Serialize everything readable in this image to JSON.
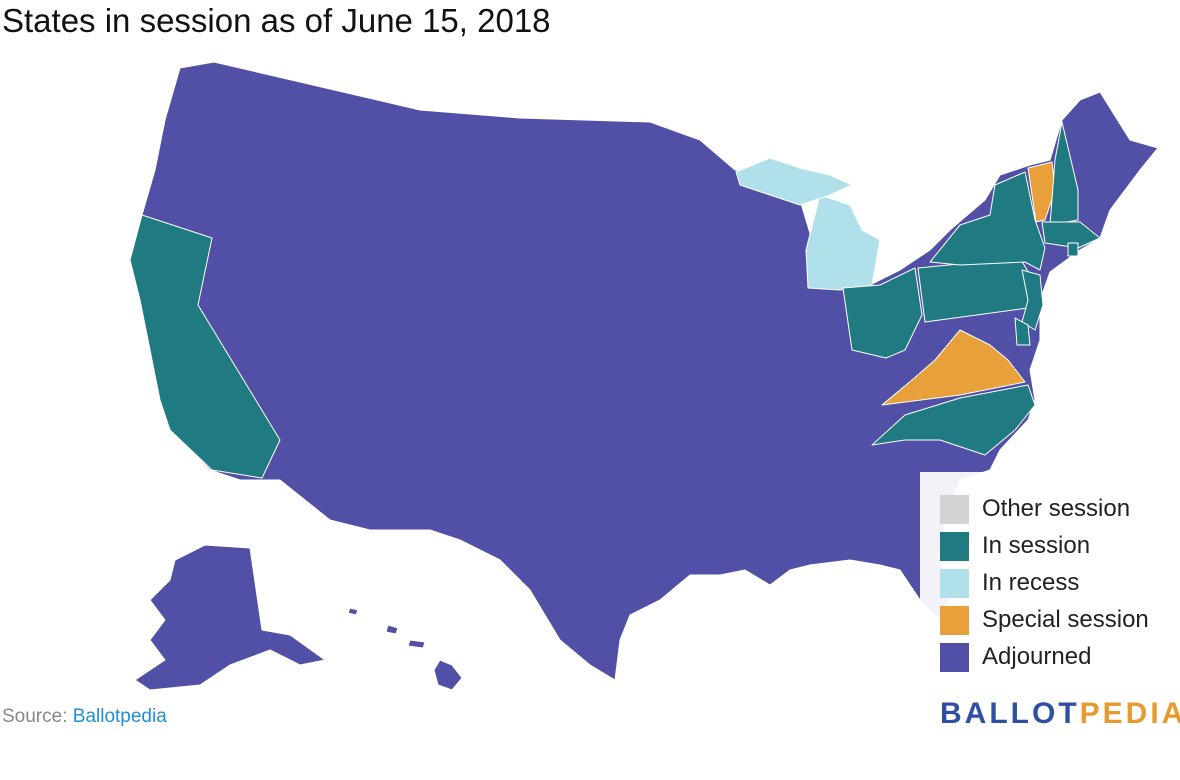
{
  "title": "States in session as of June 15, 2018",
  "colors": {
    "other": "#d3d3d3",
    "in_session": "#1f7a82",
    "in_recess": "#b0e1eb",
    "special": "#e8a03a",
    "adjourned": "#5150a6"
  },
  "legend": [
    {
      "label": "Other session",
      "key": "other"
    },
    {
      "label": "In session",
      "key": "in_session"
    },
    {
      "label": "In recess",
      "key": "in_recess"
    },
    {
      "label": "Special session",
      "key": "special"
    },
    {
      "label": "Adjourned",
      "key": "adjourned"
    }
  ],
  "states": [
    {
      "name": "California",
      "status": "in_session"
    },
    {
      "name": "Ohio",
      "status": "in_session"
    },
    {
      "name": "Pennsylvania",
      "status": "in_session"
    },
    {
      "name": "New York",
      "status": "in_session"
    },
    {
      "name": "New Jersey",
      "status": "in_session"
    },
    {
      "name": "Delaware",
      "status": "in_session"
    },
    {
      "name": "North Carolina",
      "status": "in_session"
    },
    {
      "name": "Massachusetts",
      "status": "in_session"
    },
    {
      "name": "New Hampshire",
      "status": "in_session"
    },
    {
      "name": "Rhode Island",
      "status": "in_session"
    },
    {
      "name": "Michigan",
      "status": "in_recess"
    },
    {
      "name": "Virginia",
      "status": "special"
    },
    {
      "name": "Vermont",
      "status": "special"
    }
  ],
  "default_status": "adjourned",
  "source": {
    "prefix": "Source: ",
    "link": "Ballotpedia"
  },
  "logo": {
    "part1": "BALLOT",
    "part2": "PEDIA"
  }
}
